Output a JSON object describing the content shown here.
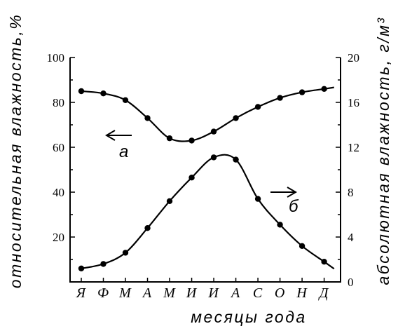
{
  "chart_data": {
    "type": "line",
    "xlabel": "месяцы года",
    "ylabel_left": "относительная влажность,%",
    "ylabel_right": "абсолютная влажность, г/м³",
    "categories": [
      "Я",
      "Ф",
      "М",
      "А",
      "М",
      "И",
      "И",
      "А",
      "С",
      "О",
      "Н",
      "Д"
    ],
    "ylim_left": [
      0,
      100
    ],
    "yticks_left": [
      "100",
      "80",
      "60",
      "40",
      "20"
    ],
    "ylim_right": [
      0,
      20
    ],
    "yticks_right": [
      "20",
      "16",
      "12",
      "8",
      "4",
      "0"
    ],
    "grid": false,
    "series": [
      {
        "name": "а",
        "axis": "left",
        "values": [
          85,
          84,
          81,
          73,
          64,
          63,
          67,
          73,
          78,
          82,
          84.5,
          86
        ],
        "arrow": "left"
      },
      {
        "name": "б",
        "axis": "right",
        "values": [
          1.2,
          1.6,
          2.6,
          4.8,
          7.2,
          9.3,
          11.1,
          10.9,
          7.4,
          5.1,
          3.2,
          1.8
        ],
        "arrow": "right"
      }
    ]
  }
}
